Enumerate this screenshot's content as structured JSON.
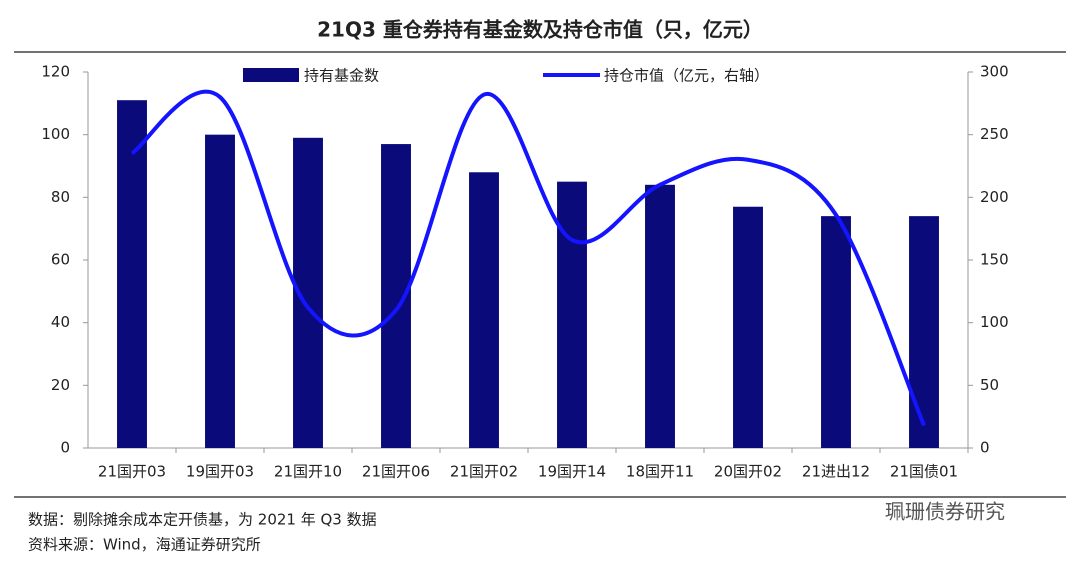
{
  "chart_data": {
    "type": "bar-line",
    "title": "21Q3 重仓券持有基金数及持仓市值（只，亿元）",
    "categories": [
      "21国开03",
      "19国开03",
      "21国开10",
      "21国开06",
      "21国开02",
      "19国开14",
      "18国开11",
      "20国开02",
      "21进出12",
      "21国债01"
    ],
    "series": [
      {
        "name": "持有基金数",
        "color": "#0a0a7a",
        "type": "bar",
        "values": [
          111,
          100,
          99,
          97,
          88,
          85,
          84,
          77,
          74,
          74
        ]
      },
      {
        "name": "持仓市值（亿元，右轴）",
        "color": "#1414ff",
        "type": "line",
        "axis": "y2",
        "values": [
          235,
          280,
          112,
          110,
          282,
          166,
          210,
          230,
          186,
          18
        ]
      }
    ],
    "ylim": [
      0,
      120
    ],
    "yticks": [
      0,
      20,
      40,
      60,
      80,
      100,
      120
    ],
    "y2lim": [
      0,
      300
    ],
    "y2ticks": [
      0,
      50,
      100,
      150,
      200,
      250,
      300
    ],
    "notes": [
      "数据：剔除摊余成本定开债基，为 2021 年 Q3 数据",
      "资料来源：Wind，海通证券研究所"
    ],
    "watermark": "珮珊债券研究"
  }
}
